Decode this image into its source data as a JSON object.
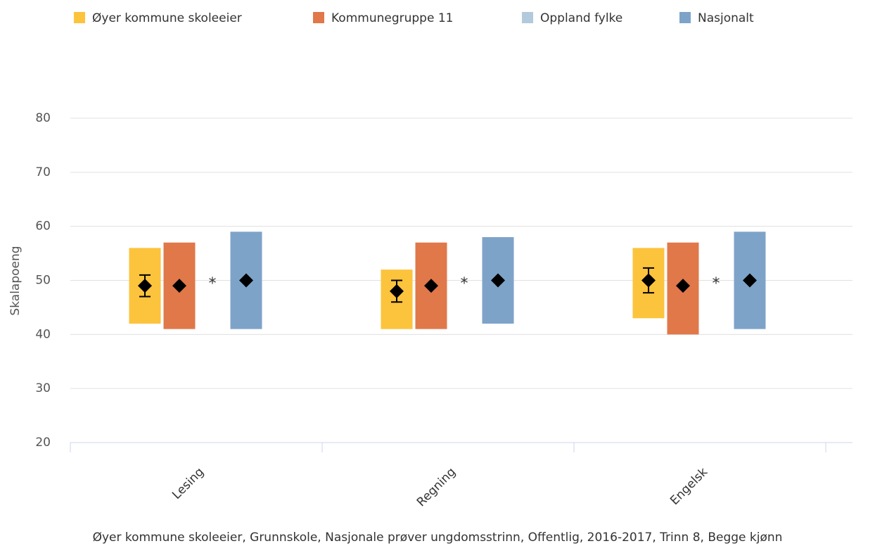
{
  "chart_data": {
    "type": "range_bar",
    "categories": [
      "Lesing",
      "Regning",
      "Engelsk"
    ],
    "y_axis_label": "Skalapoeng",
    "ylim": [
      20,
      80
    ],
    "yticks": [
      20,
      30,
      40,
      50,
      60,
      70,
      80
    ],
    "grid": true,
    "legend": "top",
    "caption": "Øyer kommune skoleeier, Grunnskole, Nasjonale prøver ungdomsstrinn, Offentlig, 2016-2017, Trinn 8, Begge kjønn",
    "series": [
      {
        "name": "Øyer kommune skoleeier",
        "color": "#fcc33d",
        "low": [
          42,
          41,
          43
        ],
        "high": [
          56,
          52,
          56
        ],
        "values": [
          49,
          48,
          50
        ],
        "error": [
          2,
          2,
          2.3
        ]
      },
      {
        "name": "Kommunegruppe 11",
        "color": "#e0784a",
        "low": [
          41,
          41,
          40
        ],
        "high": [
          57,
          57,
          57
        ],
        "values": [
          49,
          49,
          49
        ]
      },
      {
        "name": "Oppland fylke",
        "color": "#b3c9dc",
        "low": [
          null,
          null,
          null
        ],
        "high": [
          null,
          null,
          null
        ],
        "values": [
          null,
          null,
          null
        ],
        "value_labels": [
          "*",
          "*",
          "*"
        ]
      },
      {
        "name": "Nasjonalt",
        "color": "#7ea3c8",
        "low": [
          41,
          42,
          41
        ],
        "high": [
          59,
          58,
          59
        ],
        "values": [
          50,
          50,
          50
        ]
      }
    ]
  }
}
